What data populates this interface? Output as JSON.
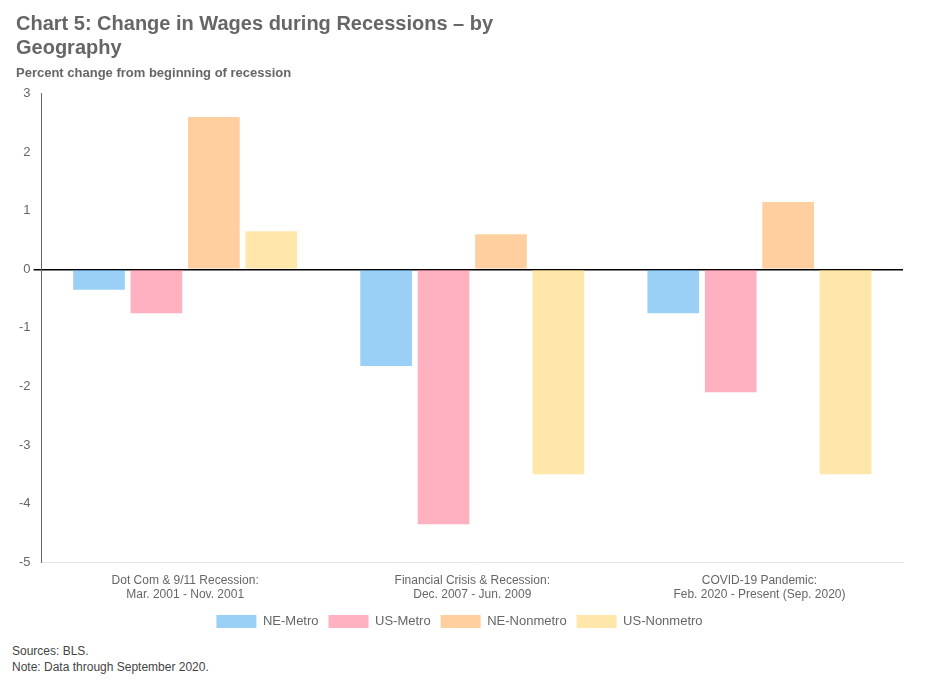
{
  "chart_data": {
    "type": "bar",
    "title": "Chart 5: Change in Wages during Recessions – by\nGeography",
    "subtitle": "Percent change from beginning of recession",
    "categories": [
      "Dot Com & 9/11 Recession:\nMar. 2001 - Nov. 2001",
      "Financial Crisis & Recession:\nDec. 2007 - Jun. 2009",
      "COVID-19 Pandemic:\nFeb. 2020 - Present (Sep. 2020)"
    ],
    "series": [
      {
        "name": "NE-Metro",
        "values": [
          -0.35,
          -1.65,
          -0.75
        ]
      },
      {
        "name": "US-Metro",
        "values": [
          -0.75,
          -4.35,
          -2.1
        ]
      },
      {
        "name": "NE-Nonmetro",
        "values": [
          2.6,
          0.6,
          1.15
        ]
      },
      {
        "name": "US-Nonmetro",
        "values": [
          0.65,
          -3.5,
          -3.5
        ]
      }
    ],
    "ylim": [
      -5,
      3
    ],
    "yticks": [
      -5,
      -4,
      -3,
      -2,
      -1,
      0,
      1,
      2,
      3
    ],
    "grid": false,
    "legend": "bottom",
    "footnote": "Sources: BLS.\nNote: Data through September 2020."
  }
}
